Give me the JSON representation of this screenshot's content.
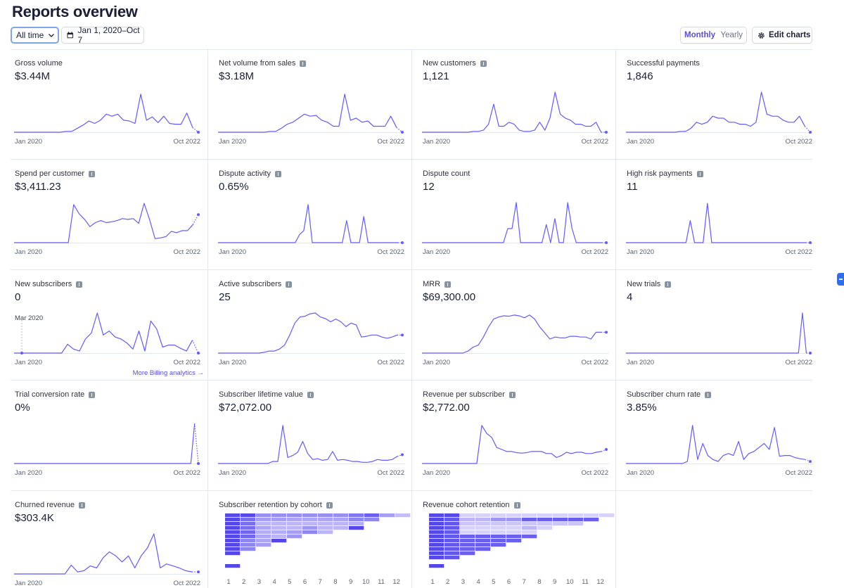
{
  "page": {
    "title": "Reports overview"
  },
  "toolbar": {
    "range_label": "All time",
    "date_range": "Jan 1, 2020–Oct 7",
    "period_monthly": "Monthly",
    "period_yearly": "Yearly",
    "edit_label": "Edit charts"
  },
  "colors": {
    "accent": "#5a4fd6",
    "line": "#635bff",
    "grid": "#e3e8ee",
    "link": "#5a4fd6"
  },
  "cards": [
    {
      "title": "Gross volume",
      "value": "$3.44M",
      "info": false,
      "start": "Jan 2020",
      "end": "Oct 2022"
    },
    {
      "title": "Net volume from sales",
      "value": "$3.18M",
      "info": true,
      "start": "Jan 2020",
      "end": "Oct 2022"
    },
    {
      "title": "New customers",
      "value": "1,121",
      "info": true,
      "start": "Jan 2020",
      "end": "Oct 2022"
    },
    {
      "title": "Successful payments",
      "value": "1,846",
      "info": false,
      "start": "Jan 2020",
      "end": "Oct 2022"
    },
    {
      "title": "Spend per customer",
      "value": "$3,411.23",
      "info": true,
      "start": "Jan 2020",
      "end": "Oct 2022"
    },
    {
      "title": "Dispute activity",
      "value": "0.65%",
      "info": true,
      "start": "Jan 2020",
      "end": "Oct 2022"
    },
    {
      "title": "Dispute count",
      "value": "12",
      "info": false,
      "start": "Jan 2020",
      "end": "Oct 2022"
    },
    {
      "title": "High risk payments",
      "value": "11",
      "info": true,
      "start": "Jan 2020",
      "end": "Oct 2022"
    },
    {
      "title": "New subscribers",
      "value": "0",
      "info": true,
      "sub": "Mar 2020",
      "start": "Jan 2020",
      "end": "Oct 2022",
      "link": "More Billing analytics →"
    },
    {
      "title": "Active subscribers",
      "value": "25",
      "info": true,
      "start": "Jan 2020",
      "end": "Oct 2022"
    },
    {
      "title": "MRR",
      "value": "$69,300.00",
      "info": true,
      "start": "Jan 2020",
      "end": "Oct 2022"
    },
    {
      "title": "New trials",
      "value": "4",
      "info": true,
      "start": "Jan 2020",
      "end": "Oct 2022"
    },
    {
      "title": "Trial conversion rate",
      "value": "0%",
      "info": true,
      "start": "Jan 2020",
      "end": "Oct 2022"
    },
    {
      "title": "Subscriber lifetime value",
      "value": "$72,072.00",
      "info": true,
      "start": "Jan 2020",
      "end": "Oct 2022"
    },
    {
      "title": "Revenue per subscriber",
      "value": "$2,772.00",
      "info": true,
      "start": "Jan 2020",
      "end": "Oct 2022"
    },
    {
      "title": "Subscriber churn rate",
      "value": "3.85%",
      "info": true,
      "start": "Jan 2020",
      "end": "Oct 2022"
    },
    {
      "title": "Churned revenue",
      "value": "$303.4K",
      "info": true,
      "start": "Jan 2020",
      "end": "Oct 2022"
    },
    {
      "title": "Subscriber retention by cohort",
      "value": "",
      "info": true,
      "cohort_ticks": [
        "1",
        "2",
        "3",
        "4",
        "5",
        "6",
        "7",
        "8",
        "9",
        "10",
        "11",
        "12"
      ]
    },
    {
      "title": "Revenue cohort retention",
      "value": "",
      "info": true,
      "cohort_ticks": [
        "1",
        "2",
        "3",
        "4",
        "5",
        "6",
        "7",
        "8",
        "9",
        "10",
        "11",
        "12"
      ]
    }
  ],
  "chart_data": [
    {
      "type": "line",
      "title": "Gross volume",
      "values": [
        0,
        0,
        0,
        0,
        0,
        0,
        0,
        0,
        0,
        0.02,
        0.02,
        0.1,
        0.18,
        0.28,
        0.22,
        0.3,
        0.45,
        0.4,
        0.45,
        0.3,
        0.28,
        0.22,
        0.95,
        0.3,
        0.38,
        0.24,
        0.4,
        0.22,
        0.2,
        0.2,
        0.48,
        0.12
      ],
      "projected_tail": [
        0.12,
        0
      ]
    },
    {
      "type": "line",
      "title": "Net volume from sales",
      "values": [
        0,
        0,
        0,
        0,
        0,
        0,
        0,
        0,
        0,
        0.02,
        0.02,
        0.1,
        0.2,
        0.25,
        0.35,
        0.45,
        0.4,
        0.42,
        0.3,
        0.25,
        0.15,
        0.15,
        0.95,
        0.3,
        0.35,
        0.25,
        0.28,
        0.15,
        0.15,
        0.15,
        0.4,
        0.12
      ],
      "projected_tail": [
        0.12,
        0
      ]
    },
    {
      "type": "line",
      "title": "New customers",
      "values": [
        0,
        0,
        0,
        0,
        0,
        0,
        0,
        0,
        0,
        0,
        0.02,
        0.02,
        0.05,
        0.2,
        0.7,
        0.15,
        0.15,
        0.25,
        0.2,
        0.05,
        0.02,
        0.02,
        0.05,
        0.25,
        0.05,
        0.35,
        1.0,
        0.45,
        0.35,
        0.3,
        0.2,
        0.2,
        0.15,
        0.15,
        0.25,
        0
      ],
      "projected_tail": [
        0,
        0
      ]
    },
    {
      "type": "line",
      "title": "Successful payments",
      "values": [
        0,
        0,
        0,
        0,
        0,
        0,
        0,
        0,
        0,
        0,
        0.02,
        0.02,
        0.1,
        0.25,
        0.2,
        0.25,
        0.4,
        0.35,
        0.35,
        0.25,
        0.25,
        0.2,
        0.2,
        0.15,
        0.25,
        1.0,
        0.45,
        0.4,
        0.4,
        0.3,
        0.25,
        0.25,
        0.4,
        0.15
      ],
      "projected_tail": [
        0.15,
        0
      ]
    },
    {
      "type": "line",
      "title": "Spend per customer",
      "values": [
        0,
        0,
        0,
        0,
        0,
        0,
        0,
        0,
        0,
        0,
        0,
        0.95,
        0.72,
        0.58,
        0.4,
        0.5,
        0.55,
        0.5,
        0.52,
        0.55,
        0.6,
        0.58,
        0.6,
        0.48,
        0.98,
        0.58,
        0.1,
        0.12,
        0.15,
        0.28,
        0.25,
        0.3,
        0.3,
        0.45
      ],
      "projected_tail": [
        0.45,
        0.7
      ]
    },
    {
      "type": "line",
      "title": "Dispute activity",
      "values": [
        0,
        0,
        0,
        0,
        0,
        0,
        0,
        0,
        0,
        0,
        0,
        0,
        0,
        0,
        0,
        0,
        0,
        0,
        0,
        0.2,
        0.3,
        0.95,
        0,
        0,
        0,
        0,
        0,
        0,
        0,
        0,
        0.55,
        0,
        0,
        0,
        0.65,
        0,
        0,
        0,
        0,
        0,
        0,
        0,
        0
      ],
      "projected_tail": [
        0,
        0
      ]
    },
    {
      "type": "line",
      "title": "Dispute count",
      "values": [
        0,
        0,
        0,
        0,
        0,
        0,
        0,
        0,
        0,
        0,
        0,
        0,
        0,
        0,
        0,
        0,
        0,
        0,
        0,
        0,
        0.35,
        0.35,
        1.0,
        0,
        0,
        0,
        0,
        0,
        0,
        0.45,
        0,
        0.6,
        0,
        0,
        1.0,
        0.35,
        0,
        0,
        0,
        0,
        0,
        0,
        0
      ],
      "projected_tail": [
        0,
        0
      ]
    },
    {
      "type": "line",
      "title": "High risk payments",
      "values": [
        0,
        0,
        0,
        0,
        0,
        0,
        0,
        0,
        0,
        0,
        0,
        0,
        0,
        0,
        0,
        0.55,
        0,
        0,
        0,
        0.98,
        0,
        0,
        0,
        0,
        0,
        0,
        0,
        0,
        0,
        0,
        0,
        0,
        0,
        0,
        0,
        0,
        0,
        0,
        0,
        0,
        0,
        0,
        0
      ],
      "projected_tail": [
        0,
        0
      ]
    },
    {
      "type": "line",
      "title": "New subscribers",
      "values": [
        0,
        0,
        0,
        0,
        0,
        0,
        0,
        0,
        0,
        0.22,
        0.1,
        0.05,
        0.35,
        0.5,
        1.0,
        0.45,
        0.55,
        0.4,
        0.35,
        0.25,
        0.1,
        0.55,
        0.05,
        0.8,
        0.6,
        0.15,
        0.2,
        0.2,
        0.12,
        0.05,
        0.32
      ],
      "projected_tail": [
        0.32,
        0
      ]
    },
    {
      "type": "line",
      "title": "Active subscribers",
      "values": [
        0,
        0,
        0,
        0,
        0,
        0,
        0,
        0,
        0,
        0.02,
        0.05,
        0.05,
        0.1,
        0.2,
        0.45,
        0.75,
        0.9,
        0.92,
        0.98,
        1.0,
        0.9,
        0.86,
        0.78,
        0.85,
        0.78,
        0.66,
        0.75,
        0.7,
        0.4,
        0.42,
        0.45,
        0.45,
        0.4,
        0.37,
        0.4,
        0.45
      ],
      "projected_tail": [
        0.45,
        0.45
      ]
    },
    {
      "type": "line",
      "title": "MRR",
      "values": [
        0,
        0,
        0,
        0,
        0,
        0,
        0,
        0,
        0,
        0.05,
        0.15,
        0.2,
        0.4,
        0.65,
        0.85,
        0.9,
        0.93,
        0.92,
        0.95,
        0.93,
        0.88,
        0.95,
        0.85,
        0.65,
        0.5,
        0.35,
        0.4,
        0.38,
        0.38,
        0.42,
        0.42,
        0.4,
        0.4,
        0.35,
        0.52,
        0.52
      ],
      "projected_tail": [
        0.52,
        0.52
      ]
    },
    {
      "type": "line",
      "title": "New trials",
      "values": [
        0,
        0,
        0,
        0,
        0,
        0,
        0,
        0,
        0,
        0,
        0,
        0,
        0,
        0,
        0,
        0,
        0,
        0,
        0,
        0,
        0,
        0,
        0,
        0,
        0,
        0,
        0,
        0,
        0,
        0,
        0,
        0,
        0,
        0,
        0,
        0,
        0,
        0,
        0,
        0,
        0,
        0,
        0,
        0,
        0,
        1.0,
        0
      ],
      "projected_tail": [
        0,
        0
      ]
    },
    {
      "type": "line",
      "title": "Trial conversion rate",
      "values": [
        0,
        0,
        0,
        0,
        0,
        0,
        0,
        0,
        0,
        0,
        0,
        0,
        0,
        0,
        0,
        0,
        0,
        0,
        0,
        0,
        0,
        0,
        0,
        0,
        0,
        0,
        0,
        0,
        0,
        0,
        0,
        0,
        0,
        0,
        0,
        0,
        0,
        0,
        0,
        0,
        0,
        0,
        0,
        0,
        0,
        0,
        0,
        0,
        1.0
      ],
      "projected_tail": [
        1.0,
        0
      ]
    },
    {
      "type": "line",
      "title": "Subscriber lifetime value",
      "values": [
        0,
        0,
        0,
        0,
        0,
        0,
        0,
        0,
        0,
        0,
        0,
        0.05,
        0.05,
        0.95,
        0.15,
        0.2,
        0.28,
        0.55,
        0.25,
        0.1,
        0.12,
        0.08,
        0.1,
        0.3,
        0.08,
        0.1,
        0.08,
        0.05,
        0.05,
        0.03,
        0.03,
        0.05,
        0.1,
        0.08,
        0.08,
        0.1,
        0.18
      ],
      "projected_tail": [
        0.18,
        0.22
      ]
    },
    {
      "type": "line",
      "title": "Revenue per subscriber",
      "values": [
        0,
        0,
        0,
        0,
        0,
        0,
        0,
        0,
        0,
        0,
        0,
        0,
        0.95,
        0.75,
        0.65,
        0.4,
        0.35,
        0.3,
        0.3,
        0.27,
        0.26,
        0.27,
        0.3,
        0.3,
        0.3,
        0.25,
        0.25,
        0.15,
        0.2,
        0.28,
        0.25,
        0.28,
        0.28,
        0.25,
        0.25,
        0.28,
        0.3
      ],
      "projected_tail": [
        0.3,
        0.35
      ]
    },
    {
      "type": "line",
      "title": "Subscriber churn rate",
      "values": [
        0,
        0,
        0,
        0,
        0,
        0,
        0,
        0,
        0,
        0,
        0,
        0,
        0.05,
        0.95,
        0.1,
        0.5,
        0.2,
        0.1,
        0.05,
        0.2,
        0.25,
        0.2,
        0.55,
        0.1,
        0.25,
        0.3,
        0.4,
        0.5,
        0.35,
        0.9,
        0.18,
        0.2,
        0.2,
        0.15,
        0.12,
        0.1
      ],
      "projected_tail": [
        0.1,
        0.05
      ]
    },
    {
      "type": "line",
      "title": "Churned revenue",
      "values": [
        0,
        0,
        0,
        0,
        0,
        0,
        0,
        0,
        0,
        0.22,
        0.05,
        0.08,
        0.2,
        0.15,
        0.4,
        0.55,
        0.45,
        0.3,
        0.45,
        0.15,
        0.45,
        0.65,
        1.0,
        0.15,
        0.25,
        0.2,
        0.15,
        0.08,
        0.05
      ],
      "projected_tail": [
        0.05,
        0.05
      ]
    },
    {
      "type": "heatmap",
      "title": "Subscriber retention by cohort",
      "columns": [
        "1",
        "2",
        "3",
        "4",
        "5",
        "6",
        "7",
        "8",
        "9",
        "10",
        "11",
        "12"
      ],
      "rows": [
        [
          1,
          1,
          0.55,
          0.55,
          0.55,
          0.55,
          0.55,
          0.55,
          0.7,
          0.85,
          0.45,
          0.25
        ],
        [
          1,
          0.75,
          0.45,
          0.45,
          0.4,
          0.4,
          0.4,
          0.4,
          0.6,
          0.6
        ],
        [
          1,
          0.75,
          0.3,
          0.3,
          0.3,
          0.3,
          0.3,
          0.3,
          0.35
        ],
        [
          1,
          0.75,
          0.4,
          0.3,
          0.3,
          0.5,
          0.3,
          0.3,
          1
        ],
        [
          1,
          0.8,
          0.35,
          0.35,
          0.45,
          0.6,
          0.3
        ],
        [
          1,
          0.8,
          0.4,
          0.3,
          0.5
        ],
        [
          1,
          0.6,
          0.4,
          1
        ],
        [
          1,
          0.6,
          0.45
        ],
        [
          1,
          0.6
        ],
        [
          1
        ],
        [],
        [
          1
        ]
      ]
    },
    {
      "type": "heatmap",
      "title": "Revenue cohort retention",
      "columns": [
        "1",
        "2",
        "3",
        "4",
        "5",
        "6",
        "7",
        "8",
        "9",
        "10",
        "11",
        "12"
      ],
      "rows": [
        [
          1,
          1,
          0.12,
          0.12,
          0.12,
          0.12,
          0.12,
          0.12,
          0.12,
          0.12,
          0.12,
          0.12
        ],
        [
          1,
          0.9,
          0.3,
          0.3,
          0.5,
          0.5,
          0.85,
          0.85,
          0.85,
          0.85,
          0.85
        ],
        [
          1,
          0.9,
          0.2,
          0.2,
          0.2,
          0.2,
          0.2,
          0.2,
          0.2,
          0.2
        ],
        [
          1,
          0.9,
          0.12,
          0.12,
          0.12,
          0.12,
          0.3,
          0.12
        ],
        [
          1,
          0.9,
          0.12,
          0.12,
          0.12,
          0.12,
          0.12
        ],
        [
          1,
          0.9,
          0.85,
          0.85,
          0.85,
          0.85,
          0.85
        ],
        [
          1,
          0.9,
          0.85,
          0.85,
          0.85,
          0.85
        ],
        [
          1,
          0.9,
          0.85,
          0.85,
          0.85
        ],
        [
          1,
          0.9,
          0.85,
          0.85
        ],
        [
          1,
          0.9,
          0.85
        ],
        [
          1,
          0.9
        ],
        [
          1
        ]
      ]
    }
  ]
}
